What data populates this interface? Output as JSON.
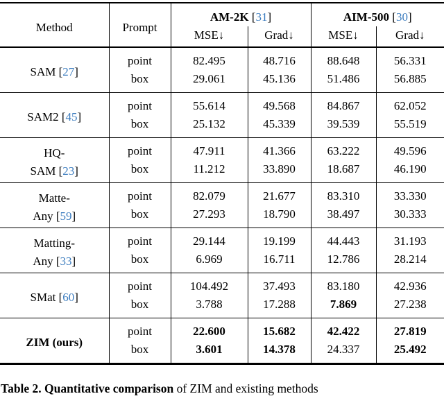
{
  "colors": {
    "citation_blue": "#3d7dbf",
    "text": "#000000",
    "background": "#ffffff"
  },
  "header": {
    "method": "Method",
    "prompt": "Prompt",
    "groups": [
      {
        "name": "AM-2K",
        "cite": "31",
        "metrics": [
          "MSE↓",
          "Grad↓"
        ]
      },
      {
        "name": "AIM-500",
        "cite": "30",
        "metrics": [
          "MSE↓",
          "Grad↓"
        ]
      }
    ]
  },
  "prompt_labels": {
    "point": "point",
    "box": "box"
  },
  "chart_data": {
    "type": "table",
    "title": "Table 2. Quantitative comparison",
    "columns": [
      "Method",
      "Prompt",
      "AM-2K MSE",
      "AM-2K Grad",
      "AIM-500 MSE",
      "AIM-500 Grad"
    ],
    "rows": [
      {
        "method_lines": [
          {
            "text": "SAM",
            "cite": "27"
          }
        ],
        "point_vals": [
          "82.495",
          "48.716",
          "88.648",
          "56.331"
        ],
        "point_bold": [
          false,
          false,
          false,
          false
        ],
        "box_vals": [
          "29.061",
          "45.136",
          "51.486",
          "56.885"
        ],
        "box_bold": [
          false,
          false,
          false,
          false
        ]
      },
      {
        "method_lines": [
          {
            "text": "SAM2",
            "cite": "45"
          }
        ],
        "point_vals": [
          "55.614",
          "49.568",
          "84.867",
          "62.052"
        ],
        "point_bold": [
          false,
          false,
          false,
          false
        ],
        "box_vals": [
          "25.132",
          "45.339",
          "39.539",
          "55.519"
        ],
        "box_bold": [
          false,
          false,
          false,
          false
        ]
      },
      {
        "method_lines": [
          {
            "text": "HQ-"
          },
          {
            "text": "SAM",
            "cite": "23"
          }
        ],
        "point_vals": [
          "47.911",
          "41.366",
          "63.222",
          "49.596"
        ],
        "point_bold": [
          false,
          false,
          false,
          false
        ],
        "box_vals": [
          "11.212",
          "33.890",
          "18.687",
          "46.190"
        ],
        "box_bold": [
          false,
          false,
          false,
          false
        ]
      },
      {
        "method_lines": [
          {
            "text": "Matte-"
          },
          {
            "text": "Any",
            "cite": "59"
          }
        ],
        "point_vals": [
          "82.079",
          "21.677",
          "83.310",
          "33.330"
        ],
        "point_bold": [
          false,
          false,
          false,
          false
        ],
        "box_vals": [
          "27.293",
          "18.790",
          "38.497",
          "30.333"
        ],
        "box_bold": [
          false,
          false,
          false,
          false
        ]
      },
      {
        "method_lines": [
          {
            "text": "Matting-"
          },
          {
            "text": "Any",
            "cite": "33"
          }
        ],
        "point_vals": [
          "29.144",
          "19.199",
          "44.443",
          "31.193"
        ],
        "point_bold": [
          false,
          false,
          false,
          false
        ],
        "box_vals": [
          "6.969",
          "16.711",
          "12.786",
          "28.214"
        ],
        "box_bold": [
          false,
          false,
          false,
          false
        ]
      },
      {
        "method_lines": [
          {
            "text": "SMat",
            "cite": "60"
          }
        ],
        "point_vals": [
          "104.492",
          "37.493",
          "83.180",
          "42.936"
        ],
        "point_bold": [
          false,
          false,
          false,
          false
        ],
        "box_vals": [
          "3.788",
          "17.288",
          "7.869",
          "27.238"
        ],
        "box_bold": [
          false,
          false,
          true,
          false
        ]
      },
      {
        "method_lines": [
          {
            "text": "ZIM (ours)",
            "bold": true
          }
        ],
        "point_vals": [
          "22.600",
          "15.682",
          "42.422",
          "27.819"
        ],
        "point_bold": [
          true,
          true,
          true,
          true
        ],
        "box_vals": [
          "3.601",
          "14.378",
          "24.337",
          "25.492"
        ],
        "box_bold": [
          true,
          true,
          false,
          true
        ]
      }
    ]
  },
  "caption": {
    "bold": "Table 2. Quantitative comparison",
    "rest": " of ZIM and existing methods"
  }
}
